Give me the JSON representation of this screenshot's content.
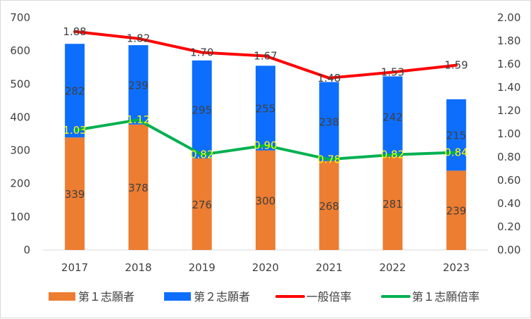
{
  "chart_data": {
    "type": "bar+line",
    "categories": [
      "2017",
      "2018",
      "2019",
      "2020",
      "2021",
      "2022",
      "2023"
    ],
    "stacked_bars": [
      {
        "name": "第１志願者",
        "color": "#ed7d31",
        "values": [
          339,
          378,
          276,
          300,
          268,
          281,
          239
        ]
      },
      {
        "name": "第２志願者",
        "color": "#0d6efd",
        "values": [
          282,
          239,
          295,
          255,
          238,
          242,
          215
        ]
      }
    ],
    "lines": [
      {
        "name": "一般倍率",
        "color": "#ff0000",
        "axis": "right",
        "values": [
          1.88,
          1.82,
          1.7,
          1.67,
          1.48,
          1.53,
          1.59
        ],
        "labels": [
          "1.88",
          "1.82",
          "1.70",
          "1.67",
          "1.48",
          "1.53",
          "1.59"
        ]
      },
      {
        "name": "第１志願倍率",
        "color": "#00b050",
        "axis": "right",
        "values": [
          1.03,
          1.12,
          0.82,
          0.9,
          0.78,
          0.82,
          0.84
        ],
        "labels": [
          "1.03",
          "1.12",
          "0.82",
          "0.90",
          "0.78",
          "0.82",
          "0.84"
        ],
        "label_color": "#ffff00"
      }
    ],
    "y_left": {
      "ylim": [
        0,
        700
      ],
      "ticks": [
        "0",
        "100",
        "200",
        "300",
        "400",
        "500",
        "600",
        "700"
      ]
    },
    "y_right": {
      "ylim": [
        0,
        2.0
      ],
      "ticks": [
        "0.00",
        "0.20",
        "0.40",
        "0.60",
        "0.80",
        "1.00",
        "1.20",
        "1.40",
        "1.60",
        "1.80",
        "2.00"
      ]
    },
    "grid": false,
    "legend_position": "bottom",
    "title": "",
    "xlabel": "",
    "ylabel": ""
  }
}
